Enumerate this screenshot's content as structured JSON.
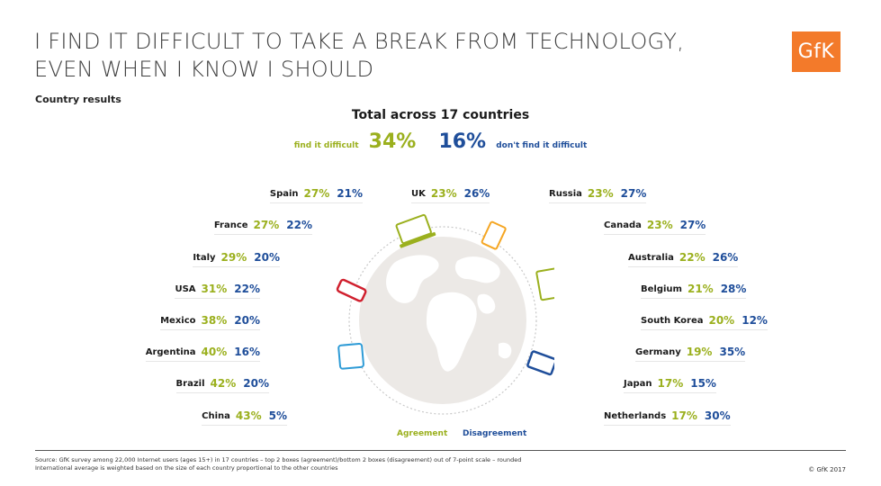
{
  "title_line1": "I FIND IT DIFFICULT TO TAKE A BREAK FROM TECHNOLOGY,",
  "title_line2": "EVEN WHEN I KNOW I SHOULD",
  "logo_text": "GfK",
  "subtitle": "Country results",
  "total": {
    "title": "Total across 17 countries",
    "agree_label": "find it difficult",
    "agree_value": "34%",
    "disagree_value": "16%",
    "disagree_label": "don't find it difficult"
  },
  "countries_left": [
    {
      "name": "Spain",
      "agree": "27%",
      "disagree": "21%"
    },
    {
      "name": "France",
      "agree": "27%",
      "disagree": "22%"
    },
    {
      "name": "Italy",
      "agree": "29%",
      "disagree": "20%"
    },
    {
      "name": "USA",
      "agree": "31%",
      "disagree": "22%"
    },
    {
      "name": "Mexico",
      "agree": "38%",
      "disagree": "20%"
    },
    {
      "name": "Argentina",
      "agree": "40%",
      "disagree": "16%"
    },
    {
      "name": "Brazil",
      "agree": "42%",
      "disagree": "20%"
    },
    {
      "name": "China",
      "agree": "43%",
      "disagree": "5%"
    }
  ],
  "country_center": {
    "name": "UK",
    "agree": "23%",
    "disagree": "26%"
  },
  "countries_right": [
    {
      "name": "Russia",
      "agree": "23%",
      "disagree": "27%"
    },
    {
      "name": "Canada",
      "agree": "23%",
      "disagree": "27%"
    },
    {
      "name": "Australia",
      "agree": "22%",
      "disagree": "26%"
    },
    {
      "name": "Belgium",
      "agree": "21%",
      "disagree": "28%"
    },
    {
      "name": "South Korea",
      "agree": "20%",
      "disagree": "12%"
    },
    {
      "name": "Germany",
      "agree": "19%",
      "disagree": "35%"
    },
    {
      "name": "Japan",
      "agree": "17%",
      "disagree": "15%"
    },
    {
      "name": "Netherlands",
      "agree": "17%",
      "disagree": "30%"
    }
  ],
  "legend": {
    "agree": "Agreement",
    "disagree": "Disagreement"
  },
  "source_line1": "Source: GfK survey among 22,000 Internet users (ages 15+) in 17 countries – top 2 boxes (agreement)/bottom 2 boxes (disagreement) out of 7-point scale – rounded",
  "source_line2": "International average is weighted based on the size of each country proportional to the other countries",
  "copyright": "© GfK 2017",
  "colors": {
    "agree": "#9bb01e",
    "disagree": "#1f4e9a",
    "brand": "#f37a2a",
    "globe": "#e2ddd9"
  },
  "icons": [
    "laptop-icon",
    "tablet-icon",
    "phone-icon",
    "globe-icon"
  ]
}
